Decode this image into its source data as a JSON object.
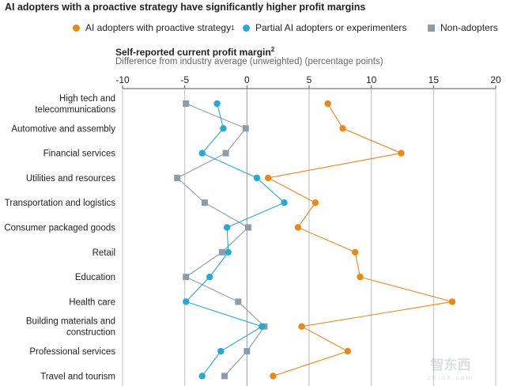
{
  "title": "AI adopters with a proactive strategy have significantly higher profit margins",
  "legend": [
    {
      "label": "AI adopters with proactive strategy",
      "sup": "1",
      "color": "#E8891A",
      "shape": "circle"
    },
    {
      "label": "Partial AI adopters or experimenters",
      "sup": "",
      "color": "#29A8D6",
      "shape": "circle"
    },
    {
      "label": "Non-adopters",
      "sup": "",
      "color": "#8B9CAC",
      "shape": "square"
    }
  ],
  "watermark": {
    "brand": "智东西",
    "url": "zhidx.com"
  },
  "chart_data": {
    "type": "line",
    "orientation": "horizontal",
    "title": "Self-reported current profit margin",
    "title_sup": "2",
    "subtitle": "Difference from industry average (unweighted) (percentage points)",
    "xlim": [
      -10,
      20
    ],
    "xticks": [
      -10,
      -5,
      0,
      5,
      10,
      15,
      20
    ],
    "xtick_labels": [
      "-10",
      "-5",
      "0",
      "5",
      "10",
      "15",
      "20"
    ],
    "categories": [
      [
        "High tech and",
        "telecommunications"
      ],
      [
        "Automotive and assembly"
      ],
      [
        "Financial services"
      ],
      [
        "Utilities and resources"
      ],
      [
        "Transportation and logistics"
      ],
      [
        "Consumer packaged goods"
      ],
      [
        "Retail"
      ],
      [
        "Education"
      ],
      [
        "Health care"
      ],
      [
        "Building materials and",
        "construction"
      ],
      [
        "Professional services"
      ],
      [
        "Travel and tourism"
      ]
    ],
    "series": [
      {
        "name": "AI adopters with proactive strategy",
        "color": "#E8891A",
        "marker": "circle",
        "values": [
          6.5,
          7.7,
          12.4,
          1.7,
          5.5,
          4.1,
          8.7,
          9.1,
          16.5,
          4.4,
          8.1,
          2.1
        ]
      },
      {
        "name": "Partial AI adopters or experimenters",
        "color": "#29A8D6",
        "marker": "circle",
        "values": [
          -2.4,
          -1.9,
          -3.6,
          0.8,
          3.0,
          -1.6,
          -1.5,
          -3.0,
          -4.9,
          1.2,
          -2.1,
          -3.6
        ]
      },
      {
        "name": "Non-adopters",
        "color": "#8B9CAC",
        "marker": "square",
        "values": [
          -4.9,
          -0.1,
          -1.7,
          -5.6,
          -3.4,
          0.1,
          -2.0,
          -4.9,
          -0.7,
          1.4,
          0.0,
          -1.8
        ]
      }
    ]
  }
}
